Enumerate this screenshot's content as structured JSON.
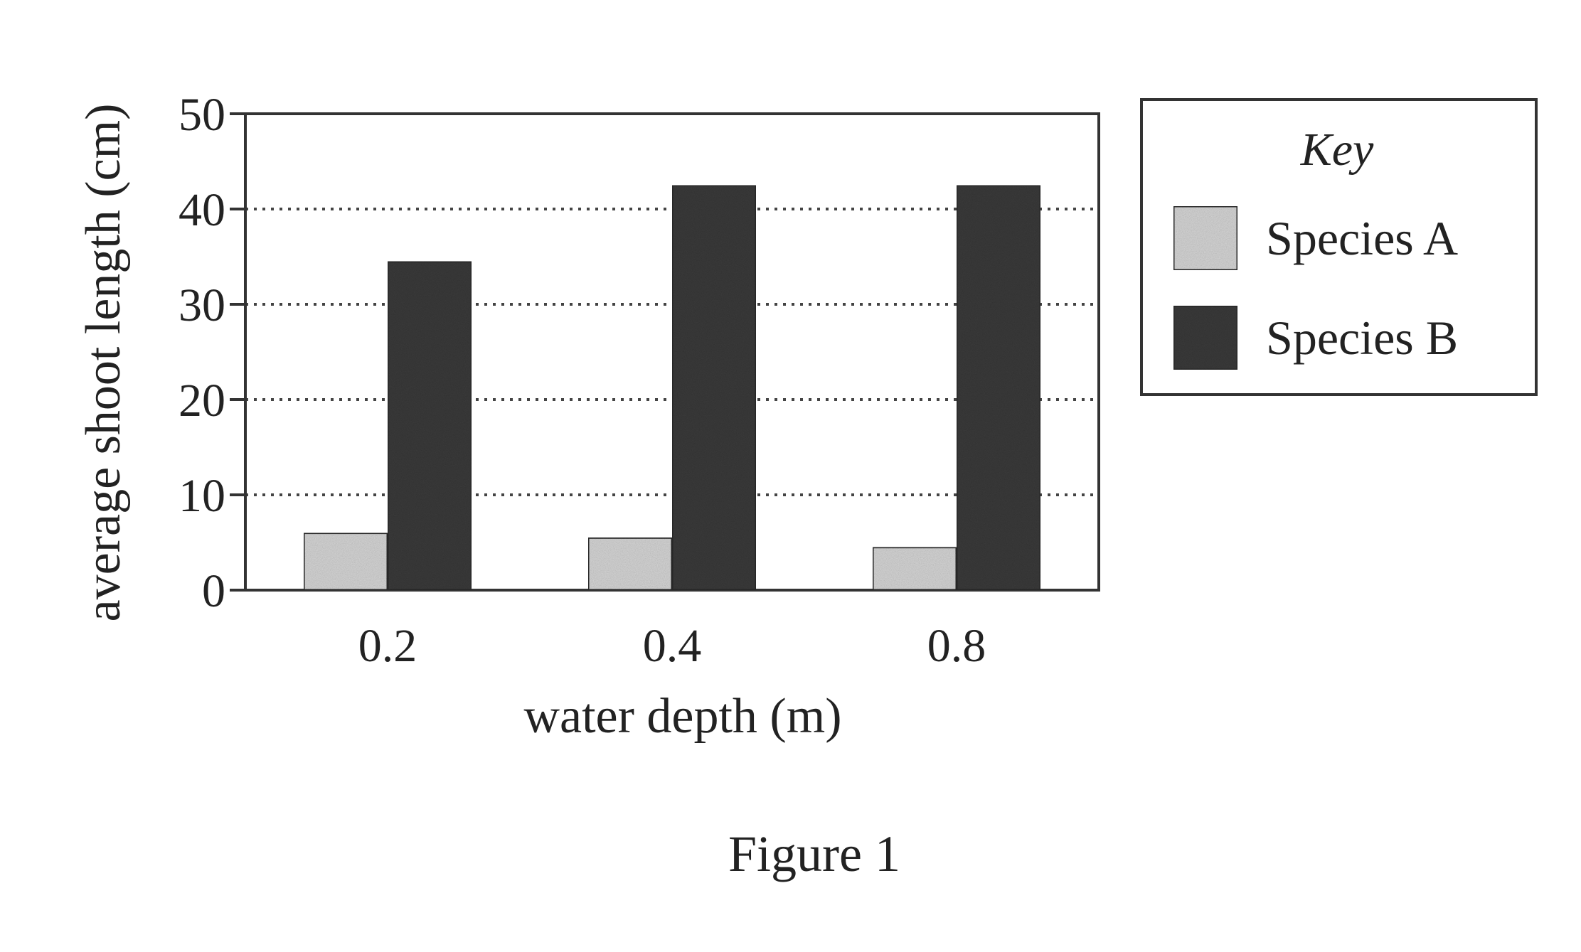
{
  "chart_data": {
    "type": "bar",
    "categories": [
      "0.2",
      "0.4",
      "0.8"
    ],
    "series": [
      {
        "name": "Species A",
        "values": [
          6,
          5.5,
          4.5
        ],
        "color": "#d4d4d4"
      },
      {
        "name": "Species B",
        "values": [
          34.5,
          42.5,
          42.5
        ],
        "color": "#3a3a3a"
      }
    ],
    "title": "",
    "xlabel": "water depth (m)",
    "ylabel": "average shoot length (cm)",
    "ylim": [
      0,
      50
    ],
    "yticks": [
      "0",
      "10",
      "20",
      "30",
      "40",
      "50"
    ],
    "grid": "horizontal dotted",
    "legend": {
      "title": "Key",
      "placement": "right"
    }
  },
  "caption": "Figure 1"
}
